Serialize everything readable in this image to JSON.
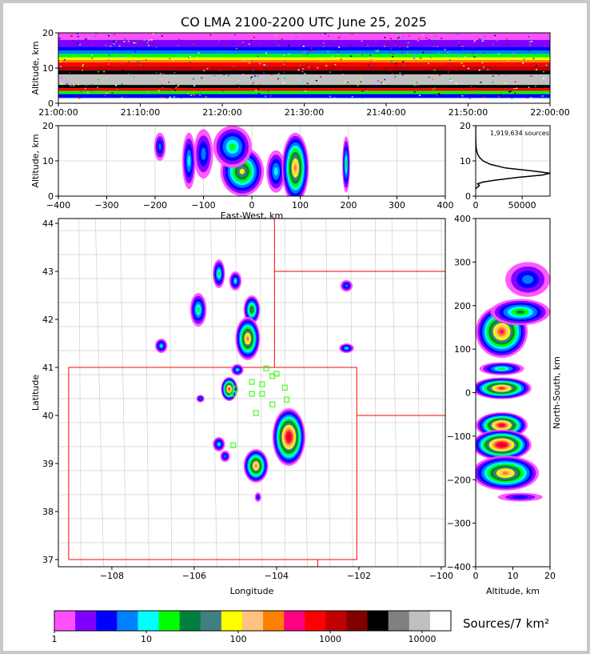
{
  "title": "CO LMA 2100-2200 UTC June 25, 2025",
  "colorbar": {
    "label": "Sources/7 km²",
    "ticks": [
      "1",
      "10",
      "100",
      "1000",
      "10000"
    ],
    "colors": [
      "#ff50ff",
      "#8000ff",
      "#0000ff",
      "#0080ff",
      "#00ffff",
      "#00ff00",
      "#008040",
      "#408080",
      "#ffff00",
      "#ffc080",
      "#ff8000",
      "#ff0080",
      "#ff0000",
      "#c00000",
      "#800000",
      "#000000",
      "#808080",
      "#c0c0c0",
      "#ffffff"
    ]
  },
  "chart_data": [
    {
      "type": "heatmap",
      "name": "time-height",
      "xlabel": "",
      "ylabel": "Altitude, km",
      "x_ticks": [
        "21:00:00",
        "21:10:00",
        "21:20:00",
        "21:30:00",
        "21:40:00",
        "21:50:00",
        "22:00:00"
      ],
      "y_ticks": [
        "0",
        "10",
        "20"
      ],
      "ylim": [
        0,
        20
      ],
      "bands": [
        {
          "z0": 18,
          "z1": 20,
          "color": "#ff50ff"
        },
        {
          "z0": 16,
          "z1": 18,
          "color": "#8000ff"
        },
        {
          "z0": 15,
          "z1": 16,
          "color": "#0000ff"
        },
        {
          "z0": 14,
          "z1": 15,
          "color": "#0080ff"
        },
        {
          "z0": 13,
          "z1": 14,
          "color": "#00ff00"
        },
        {
          "z0": 12.3,
          "z1": 13,
          "color": "#ffff00"
        },
        {
          "z0": 11.6,
          "z1": 12.3,
          "color": "#ff8000"
        },
        {
          "z0": 10.6,
          "z1": 11.6,
          "color": "#ff0000"
        },
        {
          "z0": 9.3,
          "z1": 10.6,
          "color": "#c00000"
        },
        {
          "z0": 8.2,
          "z1": 9.3,
          "color": "#000000"
        },
        {
          "z0": 5.2,
          "z1": 8.2,
          "color": "#c0c0c0"
        },
        {
          "z0": 4.3,
          "z1": 5.2,
          "color": "#000000"
        },
        {
          "z0": 3.5,
          "z1": 4.3,
          "color": "#ff0000"
        },
        {
          "z0": 2.6,
          "z1": 3.5,
          "color": "#00ff00"
        },
        {
          "z0": 1.5,
          "z1": 2.6,
          "color": "#0000ff"
        }
      ]
    },
    {
      "type": "heatmap",
      "name": "east-west-height",
      "xlabel": "East-West, km",
      "ylabel": "Altitude, km",
      "xlim": [
        -400,
        400
      ],
      "x_ticks": [
        "−400",
        "−300",
        "−200",
        "−100",
        "0",
        "100",
        "200",
        "300",
        "400"
      ],
      "y_ticks": [
        "0",
        "10",
        "20"
      ],
      "ylim": [
        0,
        20
      ],
      "cells": [
        {
          "x": -190,
          "z": 14,
          "rx": 12,
          "rz": 4,
          "level": 3
        },
        {
          "x": -130,
          "z": 10,
          "rx": 14,
          "rz": 8,
          "level": 4
        },
        {
          "x": -100,
          "z": 12,
          "rx": 20,
          "rz": 7,
          "level": 3
        },
        {
          "x": -20,
          "z": 7,
          "rx": 45,
          "rz": 7,
          "level": 8
        },
        {
          "x": -40,
          "z": 14,
          "rx": 40,
          "rz": 6,
          "level": 5
        },
        {
          "x": 50,
          "z": 7,
          "rx": 20,
          "rz": 6,
          "level": 4
        },
        {
          "x": 90,
          "z": 8,
          "rx": 28,
          "rz": 10,
          "level": 10
        },
        {
          "x": 195,
          "z": 9,
          "rx": 8,
          "rz": 8,
          "level": 5
        }
      ]
    },
    {
      "type": "line",
      "name": "altitude-histogram",
      "annotation": "1,919,634 sources",
      "xlim": [
        0,
        80000
      ],
      "x_ticks": [
        "0",
        "50000"
      ],
      "ylim": [
        0,
        20
      ],
      "y_ticks": [
        "0",
        "10",
        "20"
      ],
      "x": [
        0,
        1500,
        4000,
        2000,
        8000,
        20000,
        45000,
        72000,
        80000,
        60000,
        32000,
        16000,
        8000,
        4000,
        2000,
        1000,
        400,
        100,
        0
      ],
      "y": [
        2.0,
        2.5,
        3.0,
        3.5,
        4.0,
        4.5,
        5.3,
        6.0,
        6.5,
        7.2,
        8.0,
        9.0,
        10.0,
        11.0,
        12.0,
        13.0,
        14.0,
        16.0,
        20.0
      ]
    },
    {
      "type": "heatmap",
      "name": "plan-view",
      "xlabel": "Longitude",
      "ylabel": "Latitude",
      "xlim": [
        -109.3,
        -99.9
      ],
      "ylim": [
        36.85,
        44.1
      ],
      "x_ticks": [
        "−108",
        "−106",
        "−104",
        "−102",
        "−100"
      ],
      "y_ticks": [
        "37",
        "38",
        "39",
        "40",
        "41",
        "42",
        "43",
        "44"
      ],
      "cells": [
        {
          "lon": -105.4,
          "lat": 42.95,
          "rx": 0.15,
          "ry": 0.3,
          "level": 5
        },
        {
          "lon": -105.0,
          "lat": 42.8,
          "rx": 0.15,
          "ry": 0.2,
          "level": 4
        },
        {
          "lon": -105.9,
          "lat": 42.2,
          "rx": 0.2,
          "ry": 0.35,
          "level": 5
        },
        {
          "lon": -104.6,
          "lat": 42.2,
          "rx": 0.2,
          "ry": 0.3,
          "level": 7
        },
        {
          "lon": -104.7,
          "lat": 41.6,
          "rx": 0.3,
          "ry": 0.45,
          "level": 10
        },
        {
          "lon": -106.8,
          "lat": 41.45,
          "rx": 0.15,
          "ry": 0.15,
          "level": 4
        },
        {
          "lon": -102.3,
          "lat": 42.7,
          "rx": 0.15,
          "ry": 0.12,
          "level": 3
        },
        {
          "lon": -102.3,
          "lat": 41.4,
          "rx": 0.18,
          "ry": 0.1,
          "level": 4
        },
        {
          "lon": -104.95,
          "lat": 40.95,
          "rx": 0.15,
          "ry": 0.12,
          "level": 4
        },
        {
          "lon": -105.15,
          "lat": 40.55,
          "rx": 0.2,
          "ry": 0.25,
          "level": 11
        },
        {
          "lon": -105.85,
          "lat": 40.35,
          "rx": 0.1,
          "ry": 0.08,
          "level": 3
        },
        {
          "lon": -103.7,
          "lat": 39.55,
          "rx": 0.4,
          "ry": 0.6,
          "level": 13
        },
        {
          "lon": -104.5,
          "lat": 38.95,
          "rx": 0.3,
          "ry": 0.35,
          "level": 10
        },
        {
          "lon": -105.4,
          "lat": 39.4,
          "rx": 0.15,
          "ry": 0.15,
          "level": 4
        },
        {
          "lon": -105.25,
          "lat": 39.15,
          "rx": 0.12,
          "ry": 0.12,
          "level": 3
        },
        {
          "lon": -104.45,
          "lat": 38.3,
          "rx": 0.08,
          "ry": 0.1,
          "level": 2
        }
      ],
      "stations": [
        [
          -104.25,
          40.98
        ],
        [
          -104.1,
          40.82
        ],
        [
          -104.0,
          40.87
        ],
        [
          -104.6,
          40.7
        ],
        [
          -104.35,
          40.65
        ],
        [
          -104.35,
          40.45
        ],
        [
          -104.6,
          40.45
        ],
        [
          -103.8,
          40.58
        ],
        [
          -103.75,
          40.33
        ],
        [
          -104.1,
          40.23
        ],
        [
          -104.5,
          40.05
        ],
        [
          -105.0,
          40.55
        ],
        [
          -105.05,
          40.45
        ],
        [
          -105.05,
          39.38
        ]
      ]
    },
    {
      "type": "heatmap",
      "name": "altitude-north-south",
      "xlabel": "Altitude, km",
      "ylabel": "North-South, km",
      "xlim": [
        0,
        20
      ],
      "ylim": [
        -400,
        400
      ],
      "x_ticks": [
        "0",
        "10",
        "20"
      ],
      "y_ticks": [
        "−400",
        "−300",
        "−200",
        "−100",
        "0",
        "100",
        "200",
        "300",
        "400"
      ],
      "cells": [
        {
          "z": 14,
          "ns": 260,
          "rz": 6,
          "rns": 40,
          "level": 3
        },
        {
          "z": 7,
          "ns": 140,
          "rz": 7,
          "rns": 60,
          "level": 11
        },
        {
          "z": 12,
          "ns": 185,
          "rz": 8,
          "rns": 30,
          "level": 6
        },
        {
          "z": 7,
          "ns": 55,
          "rz": 6,
          "rns": 15,
          "level": 5
        },
        {
          "z": 7,
          "ns": 10,
          "rz": 8,
          "rns": 25,
          "level": 11
        },
        {
          "z": 7,
          "ns": -75,
          "rz": 7,
          "rns": 30,
          "level": 12
        },
        {
          "z": 7,
          "ns": -120,
          "rz": 8,
          "rns": 35,
          "level": 13
        },
        {
          "z": 8,
          "ns": -185,
          "rz": 9,
          "rns": 40,
          "level": 10
        },
        {
          "z": 12,
          "ns": -240,
          "rz": 6,
          "rns": 10,
          "level": 2
        }
      ]
    }
  ]
}
